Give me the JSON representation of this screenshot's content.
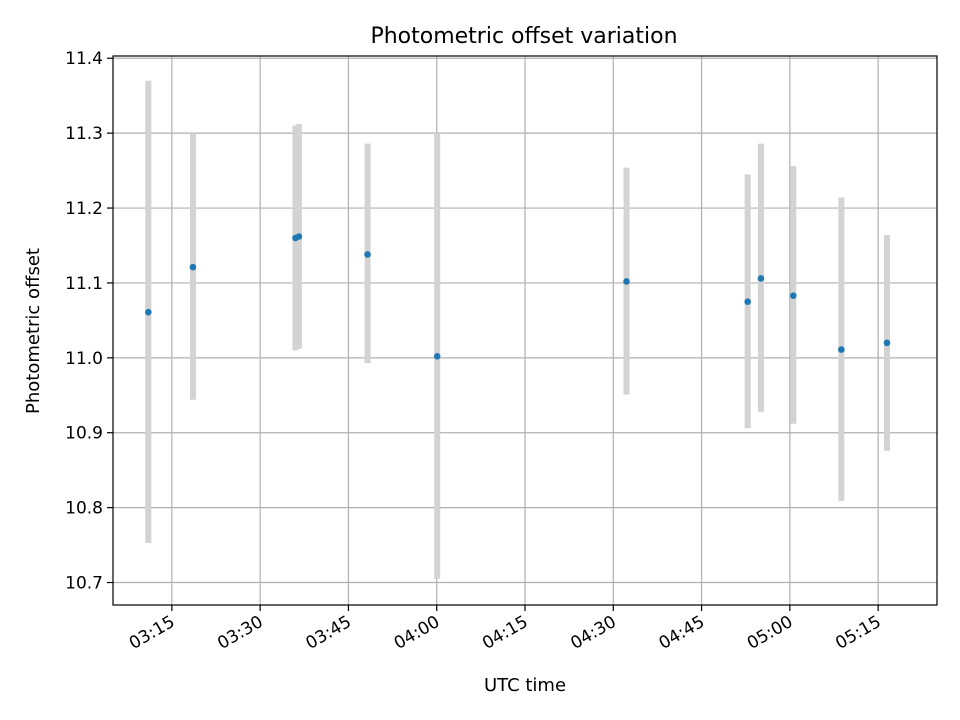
{
  "chart_data": {
    "type": "scatter",
    "title": "Photometric offset variation",
    "xlabel": "UTC time",
    "ylabel": "Photometric offset",
    "grid": true,
    "xlim": [
      "03:05",
      "05:25"
    ],
    "ylim": [
      10.67,
      11.403
    ],
    "x_ticks": [
      "03:15",
      "03:30",
      "03:45",
      "04:00",
      "04:15",
      "04:30",
      "04:45",
      "05:00",
      "05:15"
    ],
    "y_ticks": [
      "10.7",
      "10.8",
      "10.9",
      "11.0",
      "11.1",
      "11.2",
      "11.3",
      "11.4"
    ],
    "series": [
      {
        "x": [
          "03:11:00",
          "03:18:35",
          "03:36:00",
          "03:36:35",
          "03:48:15",
          "04:00:05",
          "04:32:15",
          "04:52:50",
          "04:55:05",
          "05:00:35",
          "05:08:45",
          "05:16:30"
        ],
        "y": [
          11.061,
          11.121,
          11.16,
          11.162,
          11.138,
          11.002,
          11.102,
          11.075,
          11.106,
          11.083,
          11.011,
          11.02
        ],
        "yerr_low": [
          10.753,
          10.944,
          11.01,
          11.012,
          10.993,
          10.705,
          10.951,
          10.906,
          10.928,
          10.912,
          10.809,
          10.876
        ],
        "yerr_high": [
          11.37,
          11.3,
          11.31,
          11.312,
          11.286,
          11.3,
          11.254,
          11.245,
          11.286,
          11.256,
          11.214,
          11.164
        ]
      }
    ],
    "colors": {
      "points": "#1f77b4",
      "errorbars": "#d3d3d3",
      "grid": "#b0b0b0"
    }
  }
}
